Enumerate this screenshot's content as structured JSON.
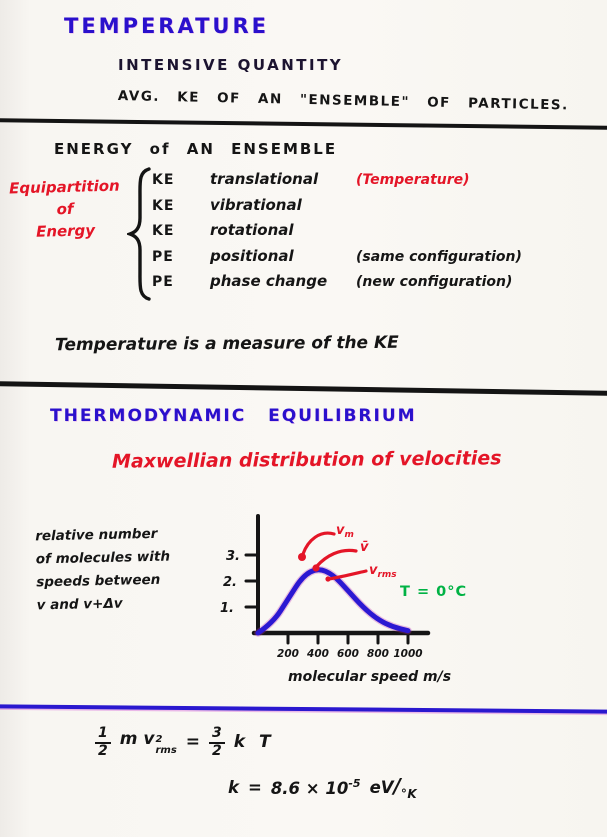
{
  "header": {
    "title": "TEMPERATURE",
    "line1": "INTENSIVE QUANTITY",
    "line2": "AVG.  KE  OF  AN  \"ENSEMBLE\"  OF  PARTICLES."
  },
  "energy_section": {
    "heading": "ENERGY  of  AN  ENSEMBLE",
    "brace_label_lines": [
      "Equipartition",
      "of",
      "Energy"
    ],
    "items": [
      {
        "type": "KE",
        "name": "translational",
        "note": "(Temperature)",
        "note_style": "red"
      },
      {
        "type": "KE",
        "name": "vibrational",
        "note": "",
        "note_style": "black"
      },
      {
        "type": "KE",
        "name": "rotational",
        "note": "",
        "note_style": "black"
      },
      {
        "type": "PE",
        "name": "positional",
        "note": "(same configuration)",
        "note_style": "black"
      },
      {
        "type": "PE",
        "name": "phase change",
        "note": "(new configuration)",
        "note_style": "black"
      }
    ],
    "summary": "Temperature is a measure of the KE"
  },
  "equilibrium_section": {
    "heading": "THERMODYNAMIC  EQUILIBRIUM",
    "subheading": "Maxwellian distribution of velocities"
  },
  "chart_data": {
    "type": "line",
    "title": "Maxwellian distribution of velocities",
    "ylabel_lines": [
      "relative number",
      "of molecules with",
      "speeds between",
      "v and v+Δv"
    ],
    "xlabel": "molecular speed  m/s",
    "x_ticks": [
      "200",
      "400",
      "600",
      "800",
      "1000"
    ],
    "y_ticks": [
      "3.",
      "2.",
      "1."
    ],
    "xlim": [
      0,
      1100
    ],
    "ylim": [
      0,
      3.3
    ],
    "grid": false,
    "x": [
      0,
      100,
      200,
      300,
      400,
      500,
      600,
      700,
      800,
      900,
      1000
    ],
    "y": [
      0,
      0.4,
      1.3,
      2.2,
      2.5,
      2.25,
      1.63,
      0.99,
      0.51,
      0.23,
      0.09
    ],
    "curve_color": "#2b18d2",
    "annotations": [
      {
        "base": "v",
        "sub": "m"
      },
      {
        "base": "v̄",
        "sub": ""
      },
      {
        "base": "v",
        "sub": "rms"
      }
    ],
    "temperature_note": "T = 0°C",
    "temperature_note_color": "#00b244"
  },
  "equations": {
    "kinetic": {
      "f1_num": "1",
      "f1_den": "2",
      "lhs": "m v",
      "sup": "2",
      "sub": "rms",
      "equals": "=",
      "f2_num": "3",
      "f2_den": "2",
      "rhs": "k T"
    },
    "boltzmann": {
      "lhs": "k",
      "equals": "=",
      "coef": "8.6 × 10",
      "exp": "-5",
      "unit_top": "eV",
      "slash": "/",
      "unit_bottom": "°K"
    }
  },
  "colors": {
    "blue_ink": "#2a10cc",
    "red_ink": "#e41527",
    "green_ink": "#00b244",
    "black_ink": "#151515"
  }
}
